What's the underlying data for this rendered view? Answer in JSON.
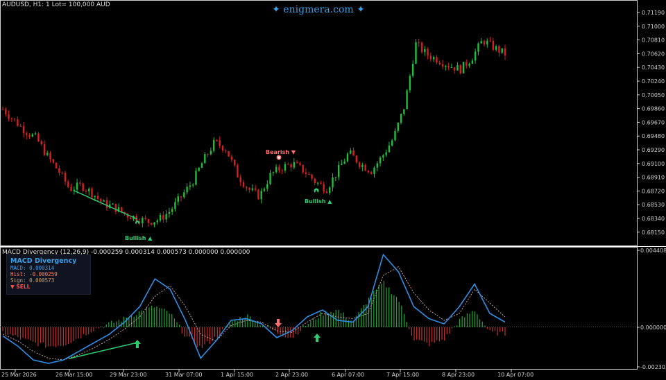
{
  "header": {
    "chart_info": "AUDUSD, H1: 1 Lot= 100,000 AUD",
    "watermark": "enigmera.com",
    "indicator_info": "MACD Divergency (12,26,9) -0.000259 0.000314 0.000573 0.000000 0.000000"
  },
  "price_axis": [
    "0.71190",
    "0.71000",
    "0.70810",
    "0.70620",
    "0.70430",
    "0.70240",
    "0.70050",
    "0.69860",
    "0.69670",
    "0.69480",
    "0.69290",
    "0.69100",
    "0.68910",
    "0.68720",
    "0.68530",
    "0.68340",
    "0.68150"
  ],
  "macd_axis": [
    "0.004408",
    "0.000000",
    "-0.002303"
  ],
  "time_axis": [
    "25 Mar 2026",
    "26 Mar 15:00",
    "29 Mar 23:00",
    "31 Mar 07:00",
    "1 Apr 15:00",
    "2 Apr 23:00",
    "6 Apr 07:00",
    "7 Apr 15:00",
    "8 Apr 23:00",
    "10 Apr 07:00"
  ],
  "signals": {
    "bullish_1": "Bullish ▲",
    "bearish_1": "Bearish ▼",
    "bullish_2": "Bullish ▲"
  },
  "info_panel": {
    "title": "MACD Divergency",
    "macd": "MACD: 0.000314",
    "hist": "Hist: -0.000259",
    "sign": "Sign: 0.000573",
    "signal": "▼ SELL"
  },
  "colors": {
    "bull": "#1fbf3a",
    "bear": "#d62020",
    "macd_line": "#2e8fe6",
    "signal_line": "#c8a0a0",
    "accent": "#3aa0e8"
  },
  "chart_data": {
    "type": "candlestick",
    "symbol": "AUDUSD",
    "timeframe": "H1",
    "x": [
      "25 Mar 2026",
      "26 Mar 15:00",
      "29 Mar 23:00",
      "31 Mar 07:00",
      "1 Apr 15:00",
      "2 Apr 23:00",
      "6 Apr 07:00",
      "7 Apr 15:00",
      "8 Apr 23:00",
      "10 Apr 07:00"
    ],
    "close_path": [
      0.699,
      0.6975,
      0.696,
      0.695,
      0.6925,
      0.6905,
      0.688,
      0.6885,
      0.6875,
      0.686,
      0.6855,
      0.6845,
      0.684,
      0.6835,
      0.6838,
      0.685,
      0.687,
      0.689,
      0.692,
      0.6945,
      0.6935,
      0.69,
      0.688,
      0.687,
      0.69,
      0.691,
      0.6915,
      0.6905,
      0.689,
      0.688,
      0.6905,
      0.693,
      0.6915,
      0.6905,
      0.6925,
      0.695,
      0.6995,
      0.708,
      0.7065,
      0.7058,
      0.705,
      0.7045,
      0.706,
      0.7085,
      0.7075,
      0.7066
    ],
    "price_ylim": [
      0.681,
      0.7125
    ],
    "macd_ylim": [
      -0.002303,
      0.004408
    ],
    "histogram": [
      -0.0003,
      -0.0006,
      -0.0009,
      -0.0011,
      -0.001,
      -0.0006,
      -0.0001,
      0.0002,
      0.0005,
      0.0009,
      0.0012,
      0.0008,
      -0.0005,
      -0.0012,
      -0.0006,
      0.0003,
      0.0007,
      0.0002,
      -0.0003,
      -0.0006,
      0.0002,
      0.0008,
      0.001,
      0.0003,
      0.0016,
      0.0026,
      0.0016,
      -0.0007,
      -0.001,
      -0.0007,
      0.0004,
      0.001,
      -0.0003,
      -0.0004
    ],
    "macd_line": [
      -0.0005,
      -0.0011,
      -0.0019,
      -0.0021,
      -0.0019,
      -0.0014,
      -0.0009,
      -0.0004,
      0.0003,
      0.0012,
      0.0028,
      0.0022,
      0.0004,
      -0.0018,
      -0.0008,
      0.0004,
      0.0005,
      0.0002,
      -0.0006,
      -0.0002,
      0.0006,
      0.001,
      0.0004,
      0.0003,
      0.0012,
      0.0042,
      0.0032,
      0.0012,
      0.0005,
      0.0002,
      0.0012,
      0.0025,
      0.0008,
      0.0003
    ],
    "signal_line": [
      -0.0004,
      -0.0008,
      -0.0014,
      -0.0018,
      -0.0019,
      -0.0016,
      -0.0012,
      -0.0007,
      -0.0001,
      0.0006,
      0.0018,
      0.0024,
      0.0012,
      -0.0004,
      -0.0008,
      0.0001,
      0.0004,
      0.0003,
      -0.0002,
      -0.0003,
      0.0003,
      0.0008,
      0.0006,
      0.0005,
      0.0008,
      0.003,
      0.0035,
      0.002,
      0.001,
      0.0004,
      0.0008,
      0.0022,
      0.0014,
      0.0006
    ]
  }
}
